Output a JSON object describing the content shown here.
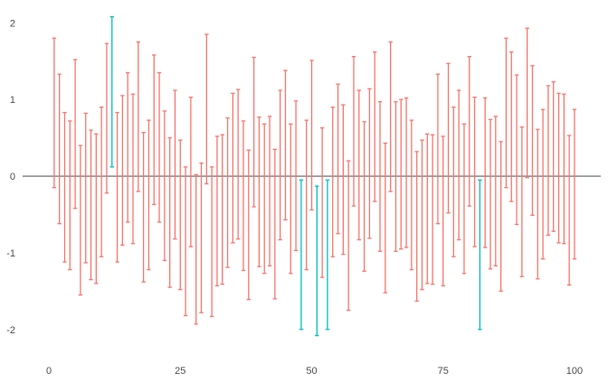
{
  "chart_data": {
    "type": "errorbar",
    "title": "",
    "xlabel": "",
    "ylabel": "",
    "xlim": [
      -5,
      105
    ],
    "ylim": [
      -2.32,
      2.18
    ],
    "x_ticks": [
      0,
      25,
      50,
      75,
      100
    ],
    "x_tick_labels": [
      "0",
      "25",
      "50",
      "75",
      "100"
    ],
    "y_ticks": [
      -2,
      -1,
      0,
      1,
      2
    ],
    "y_tick_labels": [
      "-2",
      "-1",
      "0",
      "1",
      "2"
    ],
    "grid": false,
    "reference_line_y": 0,
    "colors": {
      "red": "#F8766D",
      "teal": "#00BFC4",
      "zero_line": "#333333"
    },
    "series": [
      {
        "color": "red",
        "bars": [
          {
            "x": 1,
            "low": -0.15,
            "high": 1.8
          },
          {
            "x": 2,
            "low": -0.62,
            "high": 1.33
          },
          {
            "x": 3,
            "low": -1.12,
            "high": 0.83
          },
          {
            "x": 4,
            "low": -1.22,
            "high": 0.72
          },
          {
            "x": 5,
            "low": -0.42,
            "high": 1.52
          },
          {
            "x": 6,
            "low": -1.55,
            "high": 0.4
          },
          {
            "x": 7,
            "low": -1.13,
            "high": 0.82
          },
          {
            "x": 8,
            "low": -1.35,
            "high": 0.6
          },
          {
            "x": 9,
            "low": -1.4,
            "high": 0.55
          },
          {
            "x": 10,
            "low": -1.05,
            "high": 0.9
          },
          {
            "x": 11,
            "low": -0.22,
            "high": 1.73
          },
          {
            "x": 13,
            "low": -1.12,
            "high": 0.83
          },
          {
            "x": 14,
            "low": -0.9,
            "high": 1.05
          },
          {
            "x": 15,
            "low": -0.6,
            "high": 1.35
          },
          {
            "x": 16,
            "low": -0.88,
            "high": 1.07
          },
          {
            "x": 17,
            "low": -0.2,
            "high": 1.75
          },
          {
            "x": 18,
            "low": -1.38,
            "high": 0.57
          },
          {
            "x": 19,
            "low": -1.22,
            "high": 0.73
          },
          {
            "x": 20,
            "low": -0.37,
            "high": 1.58
          },
          {
            "x": 21,
            "low": -0.6,
            "high": 1.35
          },
          {
            "x": 22,
            "low": -1.1,
            "high": 0.85
          },
          {
            "x": 23,
            "low": -1.45,
            "high": 0.5
          },
          {
            "x": 24,
            "low": -0.82,
            "high": 1.12
          },
          {
            "x": 25,
            "low": -1.48,
            "high": 0.47
          },
          {
            "x": 26,
            "low": -1.82,
            "high": 0.12
          },
          {
            "x": 27,
            "low": -0.92,
            "high": 1.03
          },
          {
            "x": 28,
            "low": -1.93,
            "high": 0.02
          },
          {
            "x": 29,
            "low": -1.78,
            "high": 0.17
          },
          {
            "x": 30,
            "low": -0.1,
            "high": 1.85
          },
          {
            "x": 31,
            "low": -1.83,
            "high": 0.12
          },
          {
            "x": 32,
            "low": -1.43,
            "high": 0.52
          },
          {
            "x": 33,
            "low": -1.41,
            "high": 0.54
          },
          {
            "x": 34,
            "low": -1.19,
            "high": 0.76
          },
          {
            "x": 35,
            "low": -0.87,
            "high": 1.08
          },
          {
            "x": 36,
            "low": -0.82,
            "high": 1.13
          },
          {
            "x": 37,
            "low": -1.23,
            "high": 0.72
          },
          {
            "x": 38,
            "low": -1.61,
            "high": 0.34
          },
          {
            "x": 39,
            "low": -0.4,
            "high": 1.55
          },
          {
            "x": 40,
            "low": -1.18,
            "high": 0.77
          },
          {
            "x": 41,
            "low": -1.27,
            "high": 0.68
          },
          {
            "x": 42,
            "low": -1.17,
            "high": 0.78
          },
          {
            "x": 43,
            "low": -1.6,
            "high": 0.35
          },
          {
            "x": 44,
            "low": -0.83,
            "high": 1.12
          },
          {
            "x": 45,
            "low": -0.57,
            "high": 1.38
          },
          {
            "x": 46,
            "low": -1.27,
            "high": 0.68
          },
          {
            "x": 47,
            "low": -0.97,
            "high": 0.98
          },
          {
            "x": 49,
            "low": -1.22,
            "high": 0.73
          },
          {
            "x": 50,
            "low": -0.44,
            "high": 1.51
          },
          {
            "x": 52,
            "low": -1.32,
            "high": 0.63
          },
          {
            "x": 54,
            "low": -1.05,
            "high": 0.9
          },
          {
            "x": 55,
            "low": -0.75,
            "high": 1.2
          },
          {
            "x": 56,
            "low": -1.02,
            "high": 0.93
          },
          {
            "x": 57,
            "low": -1.75,
            "high": 0.2
          },
          {
            "x": 58,
            "low": -0.39,
            "high": 1.56
          },
          {
            "x": 59,
            "low": -0.83,
            "high": 1.12
          },
          {
            "x": 60,
            "low": -1.24,
            "high": 0.71
          },
          {
            "x": 61,
            "low": -0.81,
            "high": 1.14
          },
          {
            "x": 62,
            "low": -0.33,
            "high": 1.62
          },
          {
            "x": 63,
            "low": -0.98,
            "high": 0.97
          },
          {
            "x": 64,
            "low": -1.52,
            "high": 0.43
          },
          {
            "x": 65,
            "low": -0.2,
            "high": 1.75
          },
          {
            "x": 66,
            "low": -0.98,
            "high": 0.97
          },
          {
            "x": 67,
            "low": -0.95,
            "high": 1.0
          },
          {
            "x": 68,
            "low": -0.93,
            "high": 1.02
          },
          {
            "x": 69,
            "low": -1.22,
            "high": 0.73
          },
          {
            "x": 70,
            "low": -1.63,
            "high": 0.32
          },
          {
            "x": 71,
            "low": -1.48,
            "high": 0.47
          },
          {
            "x": 72,
            "low": -1.4,
            "high": 0.55
          },
          {
            "x": 73,
            "low": -1.41,
            "high": 0.54
          },
          {
            "x": 74,
            "low": -0.62,
            "high": 1.33
          },
          {
            "x": 75,
            "low": -1.43,
            "high": 0.52
          },
          {
            "x": 76,
            "low": -0.48,
            "high": 1.47
          },
          {
            "x": 77,
            "low": -1.05,
            "high": 0.9
          },
          {
            "x": 78,
            "low": -0.83,
            "high": 1.12
          },
          {
            "x": 79,
            "low": -1.27,
            "high": 0.68
          },
          {
            "x": 80,
            "low": -0.39,
            "high": 1.56
          },
          {
            "x": 81,
            "low": -0.92,
            "high": 1.03
          },
          {
            "x": 83,
            "low": -0.93,
            "high": 1.02
          },
          {
            "x": 84,
            "low": -1.21,
            "high": 0.74
          },
          {
            "x": 85,
            "low": -1.17,
            "high": 0.78
          },
          {
            "x": 86,
            "low": -1.5,
            "high": 0.45
          },
          {
            "x": 87,
            "low": -0.15,
            "high": 1.8
          },
          {
            "x": 88,
            "low": -0.33,
            "high": 1.62
          },
          {
            "x": 89,
            "low": -0.63,
            "high": 1.32
          },
          {
            "x": 90,
            "low": -1.31,
            "high": 0.64
          },
          {
            "x": 91,
            "low": -0.02,
            "high": 1.93
          },
          {
            "x": 92,
            "low": -0.51,
            "high": 1.44
          },
          {
            "x": 93,
            "low": -1.34,
            "high": 0.61
          },
          {
            "x": 94,
            "low": -1.08,
            "high": 0.87
          },
          {
            "x": 95,
            "low": -0.77,
            "high": 1.18
          },
          {
            "x": 96,
            "low": -0.72,
            "high": 1.23
          },
          {
            "x": 97,
            "low": -0.87,
            "high": 1.08
          },
          {
            "x": 98,
            "low": -0.88,
            "high": 1.07
          },
          {
            "x": 99,
            "low": -1.42,
            "high": 0.53
          },
          {
            "x": 100,
            "low": -1.08,
            "high": 0.87
          }
        ]
      },
      {
        "color": "teal",
        "bars": [
          {
            "x": 12,
            "low": 0.12,
            "high": 2.08
          },
          {
            "x": 48,
            "low": -2.0,
            "high": -0.05
          },
          {
            "x": 51,
            "low": -2.08,
            "high": -0.13
          },
          {
            "x": 53,
            "low": -2.0,
            "high": -0.05
          },
          {
            "x": 82,
            "low": -2.0,
            "high": -0.05
          }
        ]
      }
    ]
  }
}
